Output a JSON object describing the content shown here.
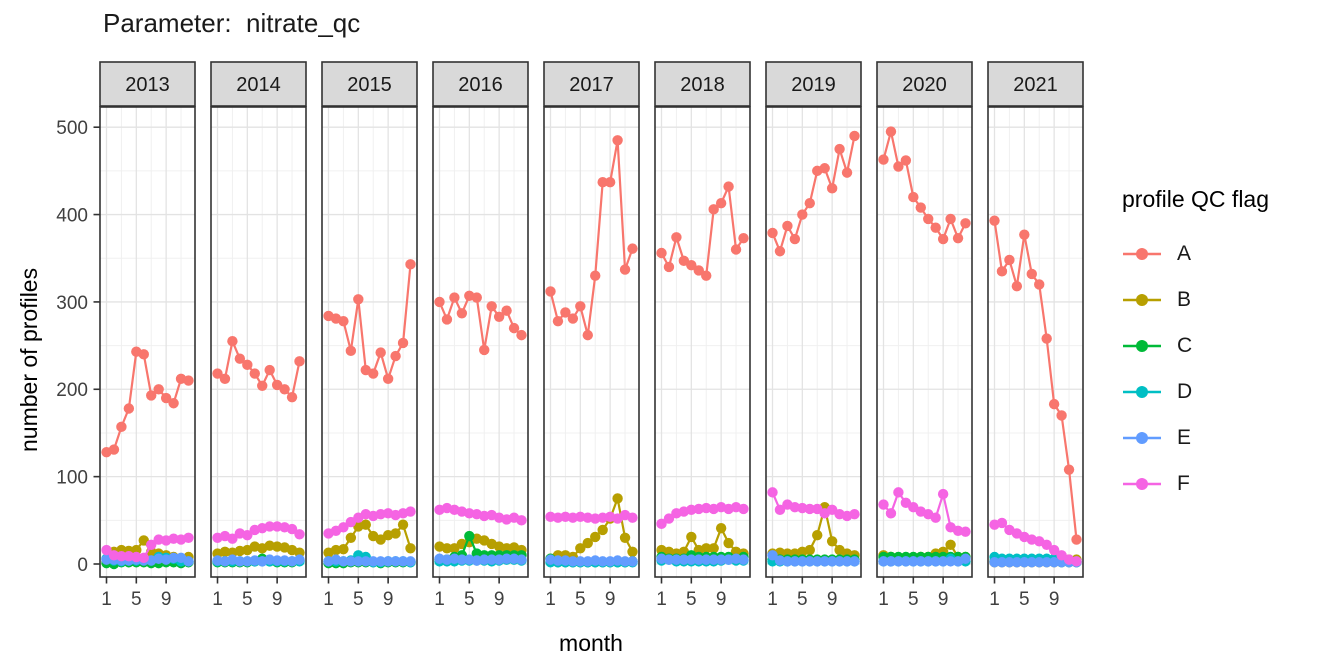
{
  "title": "Parameter:  nitrate_qc",
  "theme": {
    "strip_fill": "#D9D9D9",
    "panel_border": "#333333",
    "grid_major": "#E3E3E3",
    "grid_minor": "#F0F0F0",
    "tick_label_color": "#404040",
    "text_color": "#1A1A1A",
    "background": "#FFFFFF"
  },
  "chart_data": {
    "type": "line",
    "title": "Parameter:  nitrate_qc",
    "xlabel": "month",
    "ylabel": "number of profiles",
    "legend_title": "profile QC flag",
    "legend_position": "right",
    "facet_variable": "year",
    "facets": [
      "2013",
      "2014",
      "2015",
      "2016",
      "2017",
      "2018",
      "2019",
      "2020",
      "2021"
    ],
    "x": [
      1,
      2,
      3,
      4,
      5,
      6,
      7,
      8,
      9,
      10,
      11,
      12
    ],
    "xticks": [
      1,
      5,
      9
    ],
    "yticks": [
      0,
      100,
      200,
      300,
      400,
      500
    ],
    "yticks_minor": [
      50,
      150,
      250,
      350,
      450
    ],
    "xticks_minor": [
      3,
      7,
      11
    ],
    "ylim": [
      0,
      500
    ],
    "grid": "major+minor",
    "series": [
      {
        "name": "A",
        "color": "#F8766D",
        "values": {
          "2013": [
            128,
            131,
            157,
            178,
            243,
            240,
            193,
            200,
            190,
            184,
            212,
            210
          ],
          "2014": [
            218,
            212,
            255,
            235,
            228,
            218,
            204,
            222,
            205,
            200,
            191,
            232
          ],
          "2015": [
            284,
            281,
            278,
            244,
            303,
            222,
            218,
            242,
            212,
            238,
            253,
            343
          ],
          "2016": [
            300,
            280,
            305,
            287,
            307,
            305,
            245,
            295,
            283,
            290,
            270,
            262
          ],
          "2017": [
            312,
            278,
            288,
            281,
            295,
            262,
            330,
            437,
            437,
            485,
            337,
            361
          ],
          "2018": [
            356,
            340,
            374,
            347,
            342,
            336,
            330,
            406,
            413,
            432,
            360,
            373
          ],
          "2019": [
            379,
            358,
            387,
            372,
            400,
            413,
            450,
            453,
            430,
            475,
            448,
            490
          ],
          "2020": [
            463,
            495,
            455,
            462,
            420,
            408,
            395,
            385,
            372,
            395,
            373,
            390
          ],
          "2021": [
            393,
            335,
            348,
            318,
            377,
            332,
            320,
            258,
            183,
            170,
            108,
            28
          ]
        }
      },
      {
        "name": "B",
        "color": "#B79F00",
        "values": {
          "2013": [
            3,
            14,
            16,
            15,
            16,
            27,
            14,
            12,
            10,
            8,
            6,
            8
          ],
          "2014": [
            12,
            14,
            13,
            15,
            16,
            20,
            18,
            21,
            20,
            19,
            16,
            13
          ],
          "2015": [
            13,
            16,
            17,
            30,
            43,
            45,
            32,
            28,
            33,
            35,
            45,
            18
          ],
          "2016": [
            20,
            18,
            18,
            23,
            25,
            29,
            27,
            23,
            20,
            18,
            19,
            16
          ],
          "2017": [
            6,
            10,
            10,
            8,
            18,
            24,
            31,
            39,
            52,
            75,
            30,
            14
          ],
          "2018": [
            16,
            14,
            12,
            14,
            31,
            16,
            18,
            18,
            41,
            24,
            14,
            12
          ],
          "2019": [
            12,
            13,
            12,
            12,
            14,
            16,
            33,
            65,
            26,
            16,
            12,
            10
          ],
          "2020": [
            10,
            8,
            6,
            6,
            6,
            8,
            8,
            12,
            14,
            22,
            8,
            8
          ],
          "2021": [
            2,
            2,
            2,
            2,
            2,
            2,
            2,
            2,
            2,
            3,
            5,
            5
          ]
        }
      },
      {
        "name": "C",
        "color": "#00BA38",
        "values": {
          "2013": [
            1,
            0,
            2,
            2,
            2,
            2,
            1,
            1,
            2,
            2,
            1,
            2
          ],
          "2014": [
            2,
            2,
            2,
            2,
            2,
            3,
            6,
            3,
            2,
            2,
            2,
            4
          ],
          "2015": [
            1,
            1,
            1,
            2,
            2,
            2,
            2,
            1,
            2,
            2,
            2,
            2
          ],
          "2016": [
            5,
            5,
            8,
            10,
            32,
            12,
            10,
            10,
            10,
            10,
            10,
            10
          ],
          "2017": [
            6,
            2,
            2,
            2,
            2,
            2,
            2,
            2,
            2,
            2,
            2,
            3
          ],
          "2018": [
            8,
            6,
            6,
            6,
            10,
            8,
            8,
            8,
            8,
            8,
            6,
            8
          ],
          "2019": [
            5,
            5,
            5,
            5,
            5,
            5,
            5,
            5,
            5,
            5,
            5,
            5
          ],
          "2020": [
            8,
            8,
            8,
            8,
            8,
            8,
            8,
            8,
            8,
            8,
            8,
            8
          ],
          "2021": [
            3,
            3,
            3,
            3,
            3,
            3,
            3,
            3,
            3,
            2,
            2,
            2
          ]
        }
      },
      {
        "name": "D",
        "color": "#00BFC4",
        "values": {
          "2013": [
            6,
            4,
            3,
            4,
            4,
            5,
            4,
            8,
            7,
            6,
            3,
            3
          ],
          "2014": [
            3,
            3,
            3,
            3,
            3,
            3,
            3,
            3,
            3,
            3,
            3,
            3
          ],
          "2015": [
            3,
            3,
            3,
            4,
            10,
            8,
            2,
            2,
            3,
            3,
            3,
            2
          ],
          "2016": [
            3,
            3,
            3,
            4,
            4,
            4,
            4,
            3,
            4,
            5,
            5,
            4
          ],
          "2017": [
            2,
            2,
            2,
            2,
            2,
            2,
            2,
            2,
            2,
            2,
            2,
            2
          ],
          "2018": [
            4,
            5,
            3,
            3,
            3,
            3,
            3,
            3,
            4,
            5,
            4,
            4
          ],
          "2019": [
            3,
            3,
            3,
            3,
            3,
            3,
            3,
            3,
            3,
            3,
            3,
            3
          ],
          "2020": [
            3,
            3,
            3,
            3,
            3,
            3,
            3,
            3,
            3,
            6,
            3,
            3
          ],
          "2021": [
            8,
            6,
            6,
            6,
            6,
            6,
            6,
            6,
            6,
            4,
            3,
            3
          ]
        }
      },
      {
        "name": "E",
        "color": "#619CFF",
        "values": {
          "2013": [
            5,
            5,
            4,
            4,
            5,
            4,
            4,
            6,
            5,
            7,
            7,
            3
          ],
          "2014": [
            4,
            3,
            5,
            3,
            3,
            4,
            3,
            5,
            4,
            4,
            3,
            5
          ],
          "2015": [
            3,
            5,
            3,
            3,
            3,
            3,
            3,
            3,
            3,
            3,
            3,
            3
          ],
          "2016": [
            6,
            5,
            6,
            5,
            5,
            4,
            5,
            5,
            5,
            6,
            6,
            5
          ],
          "2017": [
            5,
            4,
            4,
            3,
            3,
            3,
            4,
            3,
            3,
            4,
            3,
            3
          ],
          "2018": [
            6,
            5,
            5,
            5,
            5,
            5,
            5,
            5,
            5,
            5,
            6,
            5
          ],
          "2019": [
            10,
            4,
            3,
            3,
            3,
            3,
            3,
            3,
            3,
            3,
            3,
            3
          ],
          "2020": [
            3,
            3,
            3,
            3,
            3,
            3,
            3,
            3,
            3,
            3,
            3,
            6
          ],
          "2021": [
            2,
            2,
            2,
            2,
            2,
            2,
            2,
            2,
            2,
            2,
            2,
            2
          ]
        }
      },
      {
        "name": "F",
        "color": "#F564E3",
        "values": {
          "2013": [
            16,
            10,
            9,
            9,
            8,
            7,
            22,
            28,
            27,
            29,
            28,
            30
          ],
          "2014": [
            30,
            32,
            29,
            35,
            33,
            39,
            41,
            43,
            43,
            42,
            40,
            34
          ],
          "2015": [
            35,
            38,
            42,
            48,
            53,
            57,
            55,
            57,
            58,
            56,
            58,
            60
          ],
          "2016": [
            62,
            64,
            62,
            60,
            58,
            57,
            55,
            56,
            53,
            51,
            53,
            50
          ],
          "2017": [
            54,
            53,
            54,
            53,
            54,
            53,
            52,
            53,
            54,
            52,
            56,
            53
          ],
          "2018": [
            46,
            52,
            58,
            60,
            62,
            63,
            64,
            63,
            65,
            63,
            65,
            63
          ],
          "2019": [
            82,
            62,
            68,
            65,
            64,
            63,
            63,
            58,
            62,
            57,
            55,
            57
          ],
          "2020": [
            68,
            58,
            82,
            70,
            65,
            60,
            57,
            53,
            80,
            42,
            38,
            37
          ],
          "2021": [
            45,
            47,
            39,
            35,
            31,
            28,
            26,
            22,
            16,
            10,
            5,
            3
          ]
        }
      }
    ]
  }
}
